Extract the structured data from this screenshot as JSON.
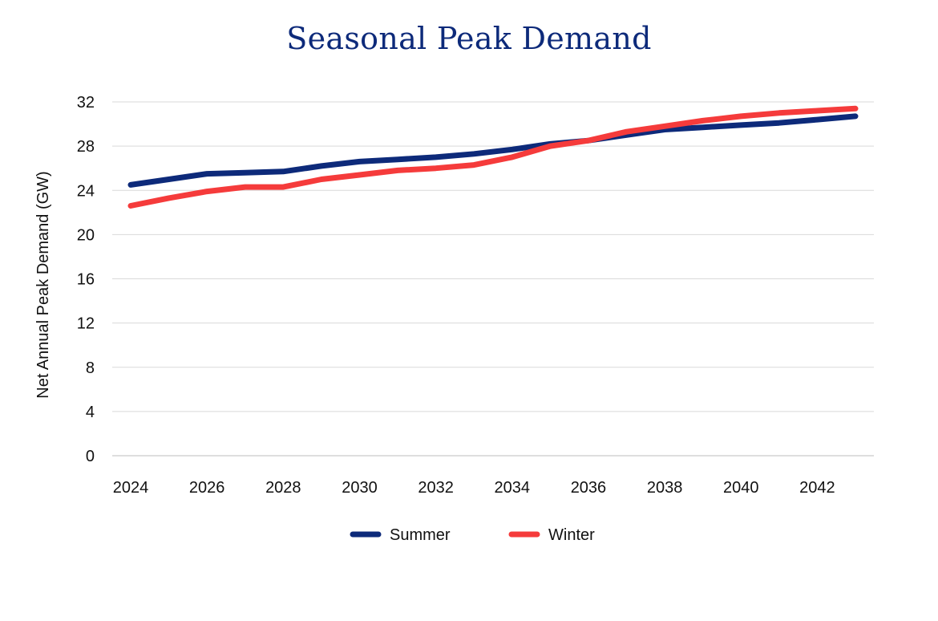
{
  "chart_data": {
    "type": "line",
    "title": "Seasonal Peak Demand",
    "xlabel": "",
    "ylabel": "Net Annual Peak Demand (GW)",
    "xlim": [
      2024,
      2043
    ],
    "ylim": [
      0,
      32
    ],
    "x_ticks": [
      2024,
      2026,
      2028,
      2030,
      2032,
      2034,
      2036,
      2038,
      2040,
      2042
    ],
    "y_ticks": [
      0,
      4,
      8,
      12,
      16,
      20,
      24,
      28,
      32
    ],
    "grid": true,
    "legend_position": "bottom-center",
    "x": [
      2024,
      2025,
      2026,
      2027,
      2028,
      2029,
      2030,
      2031,
      2032,
      2033,
      2034,
      2035,
      2036,
      2037,
      2038,
      2039,
      2040,
      2041,
      2042,
      2043
    ],
    "series": [
      {
        "name": "Summer",
        "color": "#0d2a7a",
        "values": [
          24.5,
          25.0,
          25.5,
          25.6,
          25.7,
          26.2,
          26.6,
          26.8,
          27.0,
          27.3,
          27.7,
          28.2,
          28.5,
          29.0,
          29.5,
          29.7,
          29.9,
          30.1,
          30.4,
          30.7
        ]
      },
      {
        "name": "Winter",
        "color": "#f53b3b",
        "values": [
          22.6,
          23.3,
          23.9,
          24.3,
          24.3,
          25.0,
          25.4,
          25.8,
          26.0,
          26.3,
          27.0,
          28.0,
          28.5,
          29.3,
          29.8,
          30.3,
          30.7,
          31.0,
          31.2,
          31.4
        ]
      }
    ]
  }
}
